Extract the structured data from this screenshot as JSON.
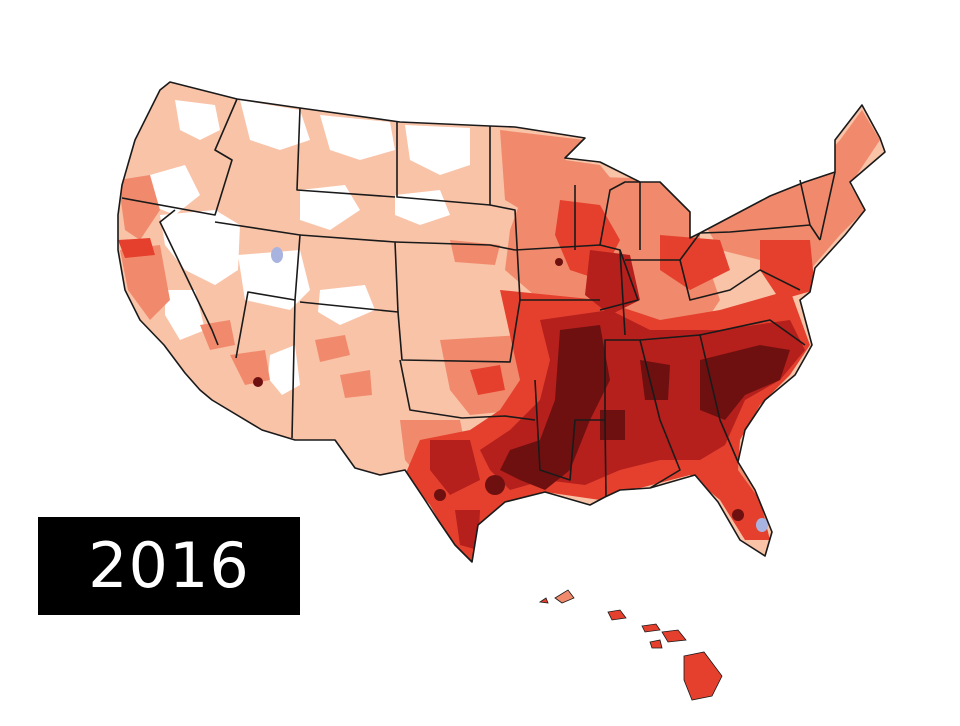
{
  "year_label": "2016",
  "colors": {
    "background": "#ffffff",
    "no_data": "#ffffff",
    "level_1": "#f9c3a8",
    "level_2": "#f18a6c",
    "level_3": "#e4402d",
    "level_4": "#b51f1c",
    "level_5": "#6e1010",
    "water_marks": "#a9b3e0",
    "borders": "#1a1a1a",
    "label_box": "#000000",
    "label_text": "#ffffff"
  }
}
